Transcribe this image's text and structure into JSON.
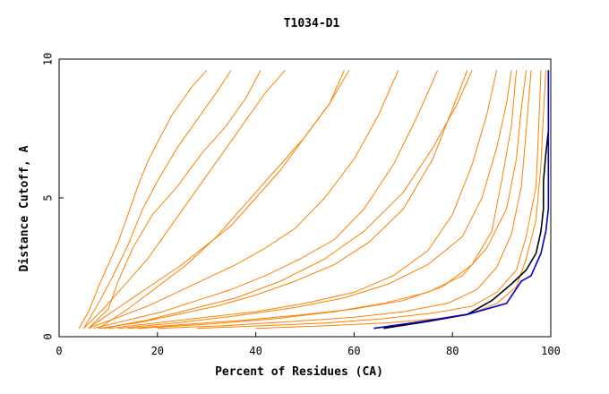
{
  "chart_data": {
    "type": "line",
    "title": "T1034-D1",
    "xlabel": "Percent of Residues (CA)",
    "ylabel": "Distance Cutoff, A",
    "xlim": [
      0,
      100
    ],
    "ylim": [
      0,
      10
    ],
    "x_ticks": [
      0,
      20,
      40,
      60,
      80,
      100
    ],
    "y_ticks": [
      0,
      5,
      10
    ],
    "grid": false,
    "colors": {
      "background_models": "#ff8000",
      "highlight_black": "#000000",
      "highlight_blue": "#0000cc"
    },
    "series": [
      {
        "color": "#ff8000",
        "points": [
          [
            4,
            0.3
          ],
          [
            6,
            0.9
          ],
          [
            8,
            1.8
          ],
          [
            10,
            2.6
          ],
          [
            12,
            3.4
          ],
          [
            14,
            4.4
          ],
          [
            16,
            5.4
          ],
          [
            18,
            6.3
          ],
          [
            20,
            7.0
          ],
          [
            23,
            8.0
          ],
          [
            27,
            9.0
          ],
          [
            30,
            9.6
          ]
        ]
      },
      {
        "color": "#ff8000",
        "points": [
          [
            5,
            0.3
          ],
          [
            8,
            1.2
          ],
          [
            11,
            2.2
          ],
          [
            14,
            3.3
          ],
          [
            17,
            4.6
          ],
          [
            20,
            5.6
          ],
          [
            24,
            6.8
          ],
          [
            28,
            7.8
          ],
          [
            32,
            8.8
          ],
          [
            35,
            9.6
          ]
        ]
      },
      {
        "color": "#ff8000",
        "points": [
          [
            5,
            0.3
          ],
          [
            9,
            1.0
          ],
          [
            13,
            1.8
          ],
          [
            18,
            2.8
          ],
          [
            22,
            3.8
          ],
          [
            26,
            4.8
          ],
          [
            30,
            5.8
          ],
          [
            34,
            6.8
          ],
          [
            38,
            7.8
          ],
          [
            42,
            8.8
          ],
          [
            46,
            9.6
          ]
        ]
      },
      {
        "color": "#ff8000",
        "points": [
          [
            6,
            0.3
          ],
          [
            10,
            0.8
          ],
          [
            15,
            1.4
          ],
          [
            20,
            2.0
          ],
          [
            25,
            2.6
          ],
          [
            30,
            3.3
          ],
          [
            35,
            4.0
          ],
          [
            40,
            5.0
          ],
          [
            45,
            6.0
          ],
          [
            50,
            7.2
          ],
          [
            55,
            8.4
          ],
          [
            58,
            9.6
          ]
        ]
      },
      {
        "color": "#ff8000",
        "points": [
          [
            6,
            0.3
          ],
          [
            12,
            0.7
          ],
          [
            18,
            1.1
          ],
          [
            24,
            1.6
          ],
          [
            30,
            2.1
          ],
          [
            36,
            2.6
          ],
          [
            42,
            3.2
          ],
          [
            48,
            3.9
          ],
          [
            54,
            5.0
          ],
          [
            60,
            6.4
          ],
          [
            65,
            8.0
          ],
          [
            69,
            9.6
          ]
        ]
      },
      {
        "color": "#ff8000",
        "points": [
          [
            7,
            0.3
          ],
          [
            14,
            0.6
          ],
          [
            21,
            0.9
          ],
          [
            28,
            1.3
          ],
          [
            35,
            1.7
          ],
          [
            42,
            2.2
          ],
          [
            49,
            2.8
          ],
          [
            56,
            3.5
          ],
          [
            62,
            4.6
          ],
          [
            68,
            6.2
          ],
          [
            73,
            8.0
          ],
          [
            77,
            9.6
          ]
        ]
      },
      {
        "color": "#ff8000",
        "points": [
          [
            8,
            0.3
          ],
          [
            16,
            0.5
          ],
          [
            24,
            0.8
          ],
          [
            32,
            1.1
          ],
          [
            40,
            1.5
          ],
          [
            48,
            2.0
          ],
          [
            56,
            2.6
          ],
          [
            63,
            3.4
          ],
          [
            70,
            4.6
          ],
          [
            76,
            6.4
          ],
          [
            80,
            8.2
          ],
          [
            83,
            9.6
          ]
        ]
      },
      {
        "color": "#ff8000",
        "points": [
          [
            10,
            0.3
          ],
          [
            20,
            0.5
          ],
          [
            30,
            0.7
          ],
          [
            40,
            0.9
          ],
          [
            50,
            1.2
          ],
          [
            60,
            1.6
          ],
          [
            68,
            2.2
          ],
          [
            75,
            3.1
          ],
          [
            80,
            4.4
          ],
          [
            84,
            6.2
          ],
          [
            87,
            8.0
          ],
          [
            89,
            9.6
          ]
        ]
      },
      {
        "color": "#ff8000",
        "points": [
          [
            14,
            0.3
          ],
          [
            26,
            0.45
          ],
          [
            38,
            0.6
          ],
          [
            50,
            0.8
          ],
          [
            60,
            1.0
          ],
          [
            70,
            1.3
          ],
          [
            78,
            1.8
          ],
          [
            84,
            2.6
          ],
          [
            88,
            3.8
          ],
          [
            90,
            5.6
          ],
          [
            92,
            7.6
          ],
          [
            93,
            9.6
          ]
        ]
      },
      {
        "color": "#ff8000",
        "points": [
          [
            20,
            0.3
          ],
          [
            34,
            0.4
          ],
          [
            48,
            0.55
          ],
          [
            60,
            0.7
          ],
          [
            70,
            0.9
          ],
          [
            79,
            1.2
          ],
          [
            85,
            1.7
          ],
          [
            89,
            2.5
          ],
          [
            92,
            3.7
          ],
          [
            94,
            5.4
          ],
          [
            95,
            7.4
          ],
          [
            96,
            9.6
          ]
        ]
      },
      {
        "color": "#ff8000",
        "points": [
          [
            28,
            0.3
          ],
          [
            42,
            0.4
          ],
          [
            55,
            0.5
          ],
          [
            66,
            0.65
          ],
          [
            76,
            0.85
          ],
          [
            84,
            1.1
          ],
          [
            89,
            1.6
          ],
          [
            93,
            2.4
          ],
          [
            95,
            3.6
          ],
          [
            97,
            5.4
          ],
          [
            97.5,
            7.4
          ],
          [
            98,
            9.6
          ]
        ]
      },
      {
        "color": "#ff8000",
        "points": [
          [
            6,
            0.3
          ],
          [
            10,
            1.0
          ],
          [
            12,
            2.0
          ],
          [
            15,
            3.2
          ],
          [
            19,
            4.4
          ],
          [
            24,
            5.4
          ],
          [
            29,
            6.6
          ],
          [
            34,
            7.6
          ],
          [
            38,
            8.6
          ],
          [
            41,
            9.6
          ]
        ]
      },
      {
        "color": "#ff8000",
        "points": [
          [
            8,
            0.3
          ],
          [
            14,
            1.0
          ],
          [
            20,
            1.8
          ],
          [
            26,
            2.6
          ],
          [
            32,
            3.6
          ],
          [
            38,
            4.8
          ],
          [
            44,
            6.0
          ],
          [
            50,
            7.2
          ],
          [
            55,
            8.4
          ],
          [
            59,
            9.6
          ]
        ]
      },
      {
        "color": "#ff8000",
        "points": [
          [
            9,
            0.3
          ],
          [
            18,
            0.6
          ],
          [
            27,
            1.0
          ],
          [
            36,
            1.4
          ],
          [
            45,
            2.0
          ],
          [
            54,
            2.8
          ],
          [
            62,
            3.8
          ],
          [
            70,
            5.2
          ],
          [
            76,
            6.8
          ],
          [
            81,
            8.4
          ],
          [
            84,
            9.6
          ]
        ]
      },
      {
        "color": "#ff8000",
        "points": [
          [
            12,
            0.3
          ],
          [
            24,
            0.5
          ],
          [
            36,
            0.75
          ],
          [
            48,
            1.05
          ],
          [
            58,
            1.4
          ],
          [
            67,
            1.9
          ],
          [
            75,
            2.6
          ],
          [
            82,
            3.6
          ],
          [
            86,
            5.0
          ],
          [
            89,
            6.8
          ],
          [
            91,
            8.4
          ],
          [
            92,
            9.6
          ]
        ]
      },
      {
        "color": "#ff8000",
        "points": [
          [
            16,
            0.3
          ],
          [
            30,
            0.45
          ],
          [
            44,
            0.65
          ],
          [
            56,
            0.9
          ],
          [
            66,
            1.2
          ],
          [
            75,
            1.6
          ],
          [
            82,
            2.2
          ],
          [
            87,
            3.2
          ],
          [
            91,
            4.6
          ],
          [
            93,
            6.4
          ],
          [
            94,
            8.2
          ],
          [
            95,
            9.6
          ]
        ]
      },
      {
        "color": "#ff8000",
        "points": [
          [
            40,
            0.3
          ],
          [
            55,
            0.4
          ],
          [
            67,
            0.5
          ],
          [
            77,
            0.65
          ],
          [
            84,
            0.85
          ],
          [
            89,
            1.2
          ],
          [
            93,
            1.8
          ],
          [
            95,
            2.8
          ],
          [
            97,
            4.2
          ],
          [
            98,
            6.2
          ],
          [
            98.5,
            8.0
          ],
          [
            99,
            9.6
          ]
        ]
      },
      {
        "color": "#000000",
        "points": [
          [
            66,
            0.3
          ],
          [
            75,
            0.55
          ],
          [
            83,
            0.8
          ],
          [
            88,
            1.3
          ],
          [
            92,
            1.9
          ],
          [
            95,
            2.4
          ],
          [
            97,
            3.0
          ],
          [
            98,
            3.8
          ],
          [
            98.5,
            4.6
          ],
          [
            98.5,
            5.6
          ],
          [
            99,
            6.6
          ],
          [
            99.5,
            7.4
          ],
          [
            99.5,
            9.6
          ]
        ]
      },
      {
        "color": "#0000cc",
        "points": [
          [
            64,
            0.3
          ],
          [
            74,
            0.55
          ],
          [
            83,
            0.8
          ],
          [
            91,
            1.2
          ],
          [
            94,
            2.0
          ],
          [
            96,
            2.2
          ],
          [
            98,
            3.0
          ],
          [
            99,
            3.8
          ],
          [
            99.5,
            4.6
          ],
          [
            99.5,
            9.6
          ]
        ]
      }
    ]
  }
}
